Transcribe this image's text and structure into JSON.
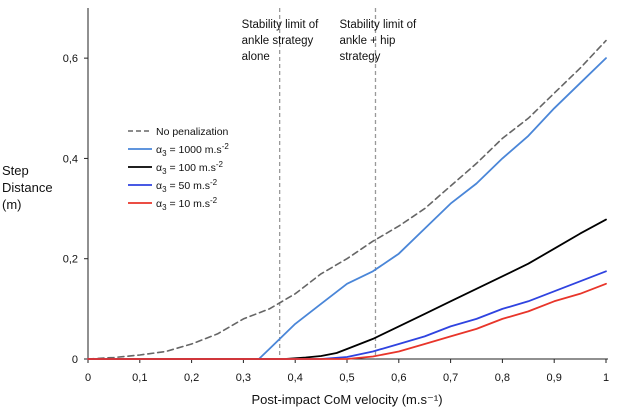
{
  "chart_data": {
    "type": "line",
    "title": "",
    "xlabel": "Post-impact CoM velocity (m.s⁻¹)",
    "ylabel": [
      "Step",
      "Distance",
      "(m)"
    ],
    "xlim": [
      0,
      1
    ],
    "ylim": [
      0,
      0.7
    ],
    "x_ticks": [
      0,
      0.1,
      0.2,
      0.3,
      0.4,
      0.5,
      0.6,
      0.7,
      0.8,
      0.9,
      1
    ],
    "x_tick_labels": [
      "0",
      "0,1",
      "0,2",
      "0,3",
      "0,4",
      "0,5",
      "0,6",
      "0,7",
      "0,8",
      "0,9",
      "1"
    ],
    "y_ticks": [
      0,
      0.2,
      0.4,
      0.6
    ],
    "y_tick_labels": [
      "0",
      "0,2",
      "0,4",
      "0,6"
    ],
    "grid": false,
    "legend_position": "left",
    "vlines": [
      {
        "x": 0.37,
        "label": [
          "Stability limit of",
          "ankle strategy",
          "alone"
        ]
      },
      {
        "x": 0.555,
        "label": [
          "Stability limit of",
          "ankle + hip",
          "strategy"
        ]
      }
    ],
    "series": [
      {
        "name": "No penalization",
        "color": "#666666",
        "dash": true,
        "points": [
          [
            0,
            0
          ],
          [
            0.05,
            0.003
          ],
          [
            0.1,
            0.008
          ],
          [
            0.15,
            0.015
          ],
          [
            0.2,
            0.03
          ],
          [
            0.25,
            0.05
          ],
          [
            0.3,
            0.08
          ],
          [
            0.35,
            0.1
          ],
          [
            0.4,
            0.13
          ],
          [
            0.45,
            0.17
          ],
          [
            0.5,
            0.2
          ],
          [
            0.55,
            0.235
          ],
          [
            0.6,
            0.265
          ],
          [
            0.65,
            0.3
          ],
          [
            0.7,
            0.345
          ],
          [
            0.75,
            0.39
          ],
          [
            0.8,
            0.44
          ],
          [
            0.85,
            0.48
          ],
          [
            0.9,
            0.53
          ],
          [
            0.95,
            0.58
          ],
          [
            1,
            0.635
          ]
        ]
      },
      {
        "name_prefix": "α",
        "name_sub": "3",
        "name_text": " = 1000 m.s",
        "name_sup": "-2",
        "color": "#4a86d8",
        "dash": false,
        "points": [
          [
            0,
            0
          ],
          [
            0.33,
            0
          ],
          [
            0.35,
            0.02
          ],
          [
            0.4,
            0.07
          ],
          [
            0.45,
            0.11
          ],
          [
            0.5,
            0.15
          ],
          [
            0.55,
            0.175
          ],
          [
            0.6,
            0.21
          ],
          [
            0.65,
            0.26
          ],
          [
            0.7,
            0.31
          ],
          [
            0.75,
            0.35
          ],
          [
            0.8,
            0.4
          ],
          [
            0.85,
            0.445
          ],
          [
            0.9,
            0.5
          ],
          [
            0.95,
            0.55
          ],
          [
            1,
            0.6
          ]
        ]
      },
      {
        "name_prefix": "α",
        "name_sub": "3",
        "name_text": " = 100 m.s",
        "name_sup": "-2",
        "color": "#000000",
        "dash": false,
        "points": [
          [
            0,
            0
          ],
          [
            0.38,
            0
          ],
          [
            0.42,
            0.003
          ],
          [
            0.45,
            0.006
          ],
          [
            0.48,
            0.012
          ],
          [
            0.5,
            0.02
          ],
          [
            0.55,
            0.04
          ],
          [
            0.6,
            0.065
          ],
          [
            0.65,
            0.09
          ],
          [
            0.7,
            0.115
          ],
          [
            0.75,
            0.14
          ],
          [
            0.8,
            0.165
          ],
          [
            0.85,
            0.19
          ],
          [
            0.9,
            0.22
          ],
          [
            0.95,
            0.25
          ],
          [
            1,
            0.278
          ]
        ]
      },
      {
        "name_prefix": "α",
        "name_sub": "3",
        "name_text": " = 50 m.s",
        "name_sup": "-2",
        "color": "#2f43e0",
        "dash": false,
        "points": [
          [
            0,
            0
          ],
          [
            0.45,
            0
          ],
          [
            0.5,
            0.004
          ],
          [
            0.55,
            0.015
          ],
          [
            0.6,
            0.03
          ],
          [
            0.65,
            0.045
          ],
          [
            0.7,
            0.065
          ],
          [
            0.75,
            0.08
          ],
          [
            0.8,
            0.1
          ],
          [
            0.85,
            0.115
          ],
          [
            0.9,
            0.135
          ],
          [
            0.95,
            0.155
          ],
          [
            1,
            0.175
          ]
        ]
      },
      {
        "name_prefix": "α",
        "name_sub": "3",
        "name_text": " = 10 m.s",
        "name_sup": "-2",
        "color": "#e8352a",
        "dash": false,
        "points": [
          [
            0,
            0
          ],
          [
            0.5,
            0
          ],
          [
            0.55,
            0.005
          ],
          [
            0.6,
            0.015
          ],
          [
            0.65,
            0.03
          ],
          [
            0.7,
            0.045
          ],
          [
            0.75,
            0.06
          ],
          [
            0.8,
            0.08
          ],
          [
            0.85,
            0.095
          ],
          [
            0.9,
            0.115
          ],
          [
            0.95,
            0.13
          ],
          [
            1,
            0.15
          ]
        ]
      }
    ]
  }
}
